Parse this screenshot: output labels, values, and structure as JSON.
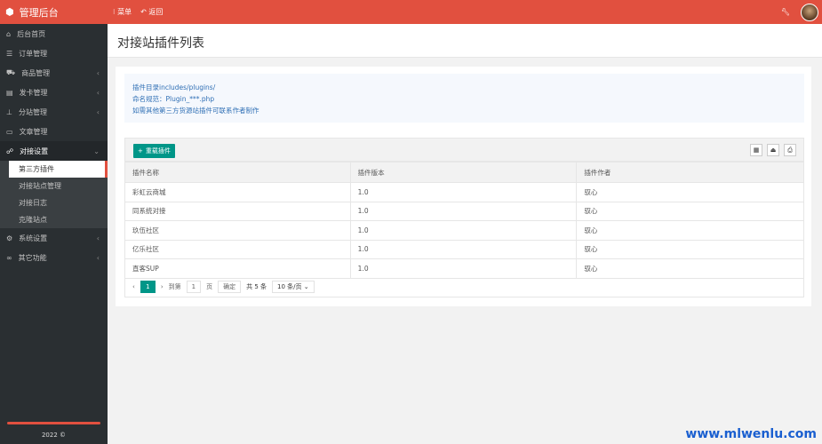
{
  "header": {
    "logo": "管理后台",
    "menu": "菜单",
    "back": "返回",
    "colors": {
      "header": "#e1503f",
      "sidebar": "#2a2f32",
      "accent": "#009688"
    }
  },
  "sidebar": {
    "items": [
      {
        "label": "后台首页",
        "icon": "home-icon"
      },
      {
        "label": "订单管理",
        "icon": "list-icon"
      },
      {
        "label": "商品管理",
        "icon": "cart-icon",
        "arrow": "‹"
      },
      {
        "label": "发卡管理",
        "icon": "card-icon",
        "arrow": "‹"
      },
      {
        "label": "分站管理",
        "icon": "sitemap-icon",
        "arrow": "‹"
      },
      {
        "label": "文章管理",
        "icon": "article-icon"
      },
      {
        "label": "对接设置",
        "icon": "connect-icon",
        "arrow": "⌄"
      }
    ],
    "sub": [
      "第三方插件",
      "对接站点管理",
      "对接日志",
      "克隆站点"
    ],
    "items2": [
      {
        "label": "系统设置",
        "icon": "gear-icon",
        "arrow": "‹"
      },
      {
        "label": "其它功能",
        "icon": "more-icon",
        "arrow": "‹"
      }
    ],
    "copyright": "2022 ©"
  },
  "page": {
    "title": "对接站插件列表"
  },
  "info": [
    "插件目录includes/plugins/",
    "命名规范：Plugin_***.php",
    "如需其他第三方货源站插件可联系作者制作"
  ],
  "toolbar": {
    "reload": "重载插件"
  },
  "table": {
    "columns": [
      "插件名称",
      "插件版本",
      "插件作者"
    ],
    "rows": [
      [
        "彩虹云商城",
        "1.0",
        "驭心"
      ],
      [
        "同系统对接",
        "1.0",
        "驭心"
      ],
      [
        "玖伍社区",
        "1.0",
        "驭心"
      ],
      [
        "亿乐社区",
        "1.0",
        "驭心"
      ],
      [
        "直客SUP",
        "1.0",
        "驭心"
      ]
    ]
  },
  "pager": {
    "current": "1",
    "goto": "到第",
    "input": "1",
    "page": "页",
    "confirm": "确定",
    "total": "共 5 条",
    "per_page": "10 条/页"
  },
  "watermark": "www.mlwenlu.com"
}
